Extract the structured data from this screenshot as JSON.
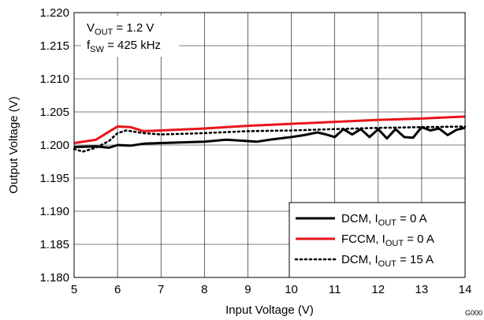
{
  "chart_data": {
    "type": "line",
    "title": "",
    "xlabel": "Input Voltage (V)",
    "ylabel": "Output Voltage (V)",
    "xlim": [
      5,
      14
    ],
    "ylim": [
      1.18,
      1.22
    ],
    "xticks": [
      5,
      6,
      7,
      8,
      9,
      10,
      11,
      12,
      13,
      14
    ],
    "xtick_labels": [
      "5",
      "6",
      "7",
      "8",
      "9",
      "10",
      "11",
      "12",
      "13",
      "14"
    ],
    "yticks": [
      1.18,
      1.185,
      1.19,
      1.195,
      1.2,
      1.205,
      1.21,
      1.215,
      1.22
    ],
    "ytick_labels": [
      "1.180",
      "1.185",
      "1.190",
      "1.195",
      "1.200",
      "1.205",
      "1.210",
      "1.215",
      "1.220"
    ],
    "grid": true,
    "legend_position": "bottom-right",
    "annotations": {
      "vout": {
        "main": "V",
        "sub": "OUT",
        "rest": " = 1.2 V"
      },
      "fsw": {
        "main": "f",
        "sub": "SW",
        "rest": " = 425 kHz"
      }
    },
    "figure_id": "G000",
    "series": [
      {
        "legend_main": "DCM, I",
        "legend_sub": "OUT",
        "legend_rest": " = 0 A",
        "color": "#000000",
        "style": "solid",
        "x": [
          5,
          5.5,
          5.8,
          6,
          6.3,
          6.6,
          7,
          7.5,
          8,
          8.5,
          9,
          9.2,
          9.5,
          10,
          10.3,
          10.6,
          10.8,
          11,
          11.2,
          11.4,
          11.6,
          11.8,
          12,
          12.2,
          12.4,
          12.6,
          12.8,
          13,
          13.2,
          13.4,
          13.6,
          13.8,
          14
        ],
        "y": [
          1.1997,
          1.1998,
          1.1996,
          1.2,
          1.1999,
          1.2002,
          1.2003,
          1.2004,
          1.2005,
          1.2008,
          1.2006,
          1.2005,
          1.2008,
          1.2012,
          1.2015,
          1.2019,
          1.2016,
          1.2012,
          1.2024,
          1.2016,
          1.2024,
          1.2012,
          1.2024,
          1.201,
          1.2024,
          1.2012,
          1.2011,
          1.2027,
          1.2022,
          1.2025,
          1.2015,
          1.2023,
          1.2026
        ]
      },
      {
        "legend_main": "FCCM, I",
        "legend_sub": "OUT",
        "legend_rest": " = 0 A",
        "color": "#e8151b",
        "style": "solid",
        "x": [
          5,
          5.5,
          5.8,
          6,
          6.3,
          6.6,
          7,
          8,
          9,
          10,
          11,
          12,
          13,
          14
        ],
        "y": [
          1.2003,
          1.2008,
          1.202,
          1.2028,
          1.2027,
          1.2021,
          1.2022,
          1.2025,
          1.2029,
          1.2032,
          1.2035,
          1.2038,
          1.204,
          1.2043
        ]
      },
      {
        "legend_main": "DCM, I",
        "legend_sub": "OUT",
        "legend_rest": " = 15 A",
        "color": "#000000",
        "style": "dotted",
        "x": [
          5,
          5.2,
          5.5,
          5.8,
          6,
          6.2,
          6.6,
          7,
          8,
          9,
          10,
          11,
          12,
          13,
          14
        ],
        "y": [
          1.1994,
          1.199,
          1.1996,
          1.2006,
          1.2018,
          1.2022,
          1.2018,
          1.2016,
          1.2018,
          1.2021,
          1.2022,
          1.2024,
          1.2026,
          1.2027,
          1.2028
        ]
      }
    ]
  }
}
